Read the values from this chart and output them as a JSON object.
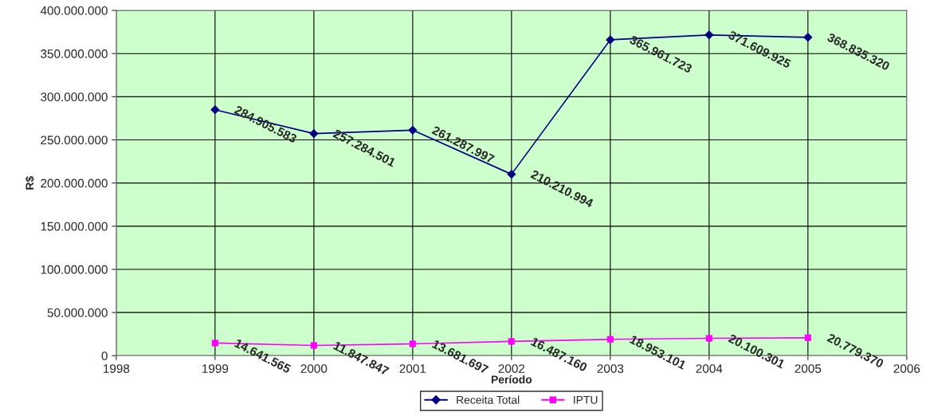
{
  "chart_data": {
    "type": "line",
    "xlabel": "Período",
    "ylabel": "R$",
    "x": [
      1999,
      2000,
      2001,
      2002,
      2003,
      2004,
      2005
    ],
    "series": [
      {
        "name": "Receita Total",
        "color": "#000080",
        "marker": "diamond",
        "values": [
          284905583,
          257284501,
          261287997,
          210210994,
          365961723,
          371609925,
          368835320
        ],
        "value_labels": [
          "284.905.583",
          "257.284.501",
          "261.287.997",
          "210.210.994",
          "365.961.723",
          "371.609.925",
          "368.835.320"
        ]
      },
      {
        "name": "IPTU",
        "color": "#ff00ff",
        "marker": "square",
        "values": [
          14641565,
          11847847,
          13681697,
          16487160,
          18953101,
          20100301,
          20779370
        ],
        "value_labels": [
          "14.641.565",
          "11.847.847",
          "13.681.697",
          "16.487.160",
          "18.953.101",
          "20.100.301",
          "20.779.370"
        ]
      }
    ],
    "xlim": [
      1998,
      2006
    ],
    "xticks": [
      1998,
      1999,
      2000,
      2001,
      2002,
      2003,
      2004,
      2005,
      2006
    ],
    "ylim": [
      0,
      400000000
    ],
    "yticks": [
      {
        "value": 0,
        "label": "0"
      },
      {
        "value": 50000000,
        "label": "50.000.000"
      },
      {
        "value": 100000000,
        "label": "100.000.000"
      },
      {
        "value": 150000000,
        "label": "150.000.000"
      },
      {
        "value": 200000000,
        "label": "200.000.000"
      },
      {
        "value": 250000000,
        "label": "250.000.000"
      },
      {
        "value": 300000000,
        "label": "300.000.000"
      },
      {
        "value": 350000000,
        "label": "350.000.000"
      },
      {
        "value": 400000000,
        "label": "400.000.000"
      }
    ],
    "grid": true,
    "legend": "bottom",
    "line_style": "solid"
  }
}
